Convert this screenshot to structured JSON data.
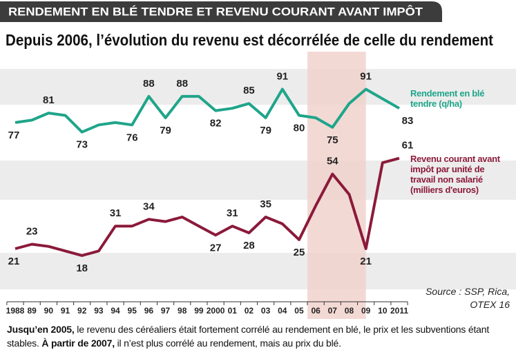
{
  "chart_data": {
    "type": "line",
    "title": "RENDEMENT EN BLÉ TENDRE ET REVENU COURANT AVANT IMPÔT",
    "subtitle": "Depuis 2006, l’évolution du revenu est décorrélée de celle du rendement",
    "categories": [
      "1988",
      "89",
      "90",
      "91",
      "92",
      "93",
      "94",
      "95",
      "96",
      "97",
      "98",
      "99",
      "2000",
      "01",
      "02",
      "03",
      "04",
      "05",
      "06",
      "07",
      "08",
      "09",
      "10",
      "2011"
    ],
    "series": [
      {
        "name": "Rendement en blé tendre (q/ha)",
        "color": "#1fa58a",
        "values": [
          77,
          78,
          81,
          80,
          73,
          76,
          77,
          76,
          88,
          79,
          88,
          88,
          82,
          83,
          85,
          79,
          91,
          80,
          79,
          75,
          85,
          91,
          87,
          83
        ],
        "value_labels": [
          "77",
          null,
          "81",
          null,
          "73",
          null,
          null,
          "76",
          "88",
          "79",
          "88",
          null,
          "82",
          null,
          "85",
          "79",
          "91",
          "80",
          null,
          "75",
          null,
          "91",
          null,
          "83"
        ]
      },
      {
        "name": "Revenu courant avant impôt par unité de travail non salarié (milliers d'euros)",
        "color": "#8b1a3a",
        "axis": "y2",
        "values": [
          21,
          23,
          22,
          20,
          18,
          20,
          31,
          31,
          34,
          33,
          35,
          31,
          27,
          31,
          28,
          35,
          32,
          25,
          40,
          54,
          45,
          21,
          59,
          61
        ],
        "value_labels": [
          "21",
          "23",
          null,
          null,
          "18",
          null,
          "31",
          null,
          "34",
          null,
          null,
          null,
          "27",
          "31",
          "28",
          "35",
          null,
          "25",
          null,
          "54",
          null,
          "21",
          null,
          "61"
        ]
      }
    ],
    "ylim": [
      4,
      101
    ],
    "y2lim": [
      0,
      102
    ],
    "highlight": {
      "from": "06",
      "to": "09",
      "color": "#f1d2cd"
    },
    "source": "Source : SSP, Rica, OTEX 16",
    "footnote": [
      {
        "text": "Jusqu’en 2005,",
        "bold": true
      },
      {
        "text": " le revenu des céréaliers était fortement corrélé au rendement en blé, le prix et les subventions étant stables. ",
        "bold": false
      },
      {
        "text": "À partir de 2007,",
        "bold": true
      },
      {
        "text": " il n’est plus corrélé au rendement, mais au prix du blé.",
        "bold": false
      }
    ]
  }
}
